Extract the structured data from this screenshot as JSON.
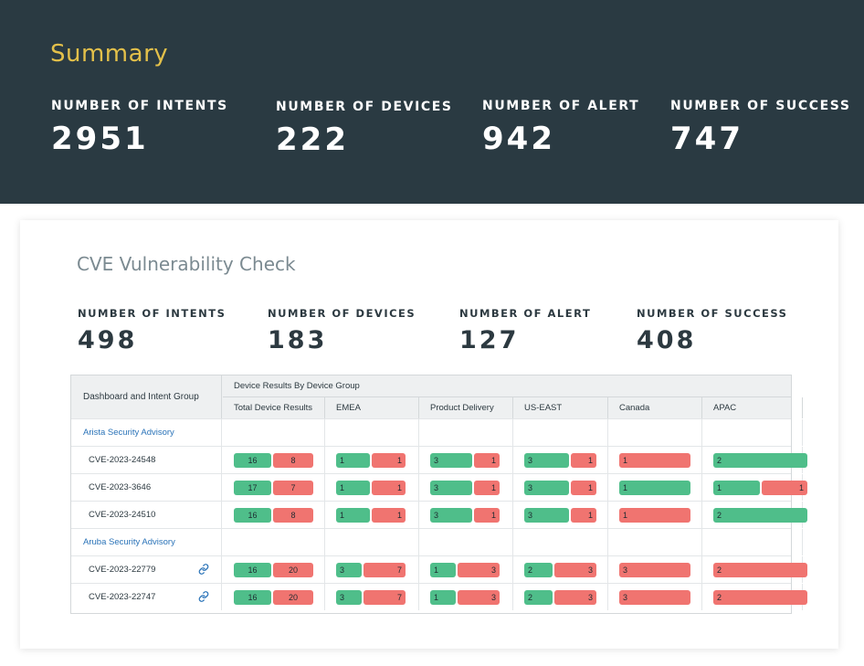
{
  "summary": {
    "title": "Summary",
    "stats": [
      {
        "label": "NUMBER OF INTENTS",
        "value": "2951"
      },
      {
        "label": "NUMBER OF DEVICES",
        "value": "222"
      },
      {
        "label": "NUMBER OF ALERT",
        "value": "942"
      },
      {
        "label": "NUMBER OF SUCCESS",
        "value": "747"
      }
    ]
  },
  "card": {
    "title": "CVE Vulnerability Check",
    "stats": [
      {
        "label": "NUMBER OF INTENTS",
        "value": "498"
      },
      {
        "label": "NUMBER OF DEVICES",
        "value": "183"
      },
      {
        "label": "NUMBER OF ALERT",
        "value": "127"
      },
      {
        "label": "NUMBER OF SUCCESS",
        "value": "408"
      }
    ]
  },
  "table": {
    "left_header": "Dashboard and Intent Group",
    "group_header": "Device Results By Device Group",
    "columns": [
      "Total Device Results",
      "EMEA",
      "Product Delivery",
      "US-EAST",
      "Canada",
      "APAC"
    ],
    "colors": {
      "success": "#4fbe8a",
      "alert": "#f07470",
      "link": "#2a73b8"
    },
    "rows": [
      {
        "type": "group",
        "name": "Arista Security Advisory"
      },
      {
        "type": "item",
        "name": "CVE-2023-24548",
        "link": false,
        "cells": [
          [
            16,
            8
          ],
          [
            1,
            1
          ],
          [
            3,
            1
          ],
          [
            3,
            1
          ],
          [
            0,
            1
          ],
          [
            2,
            0
          ]
        ]
      },
      {
        "type": "item",
        "name": "CVE-2023-3646",
        "link": false,
        "cells": [
          [
            17,
            7
          ],
          [
            1,
            1
          ],
          [
            3,
            1
          ],
          [
            3,
            1
          ],
          [
            1,
            0
          ],
          [
            1,
            1
          ]
        ]
      },
      {
        "type": "item",
        "name": "CVE-2023-24510",
        "link": false,
        "cells": [
          [
            16,
            8
          ],
          [
            1,
            1
          ],
          [
            3,
            1
          ],
          [
            3,
            1
          ],
          [
            0,
            1
          ],
          [
            2,
            0
          ]
        ]
      },
      {
        "type": "group",
        "name": "Aruba Security Advisory"
      },
      {
        "type": "item",
        "name": "CVE-2023-22779",
        "link": true,
        "cells": [
          [
            16,
            20
          ],
          [
            3,
            7
          ],
          [
            1,
            3
          ],
          [
            2,
            3
          ],
          [
            0,
            3
          ],
          [
            0,
            2
          ]
        ]
      },
      {
        "type": "item",
        "name": "CVE-2023-22747",
        "link": true,
        "cells": [
          [
            16,
            20
          ],
          [
            3,
            7
          ],
          [
            1,
            3
          ],
          [
            2,
            3
          ],
          [
            0,
            3
          ],
          [
            0,
            2
          ]
        ]
      }
    ]
  }
}
